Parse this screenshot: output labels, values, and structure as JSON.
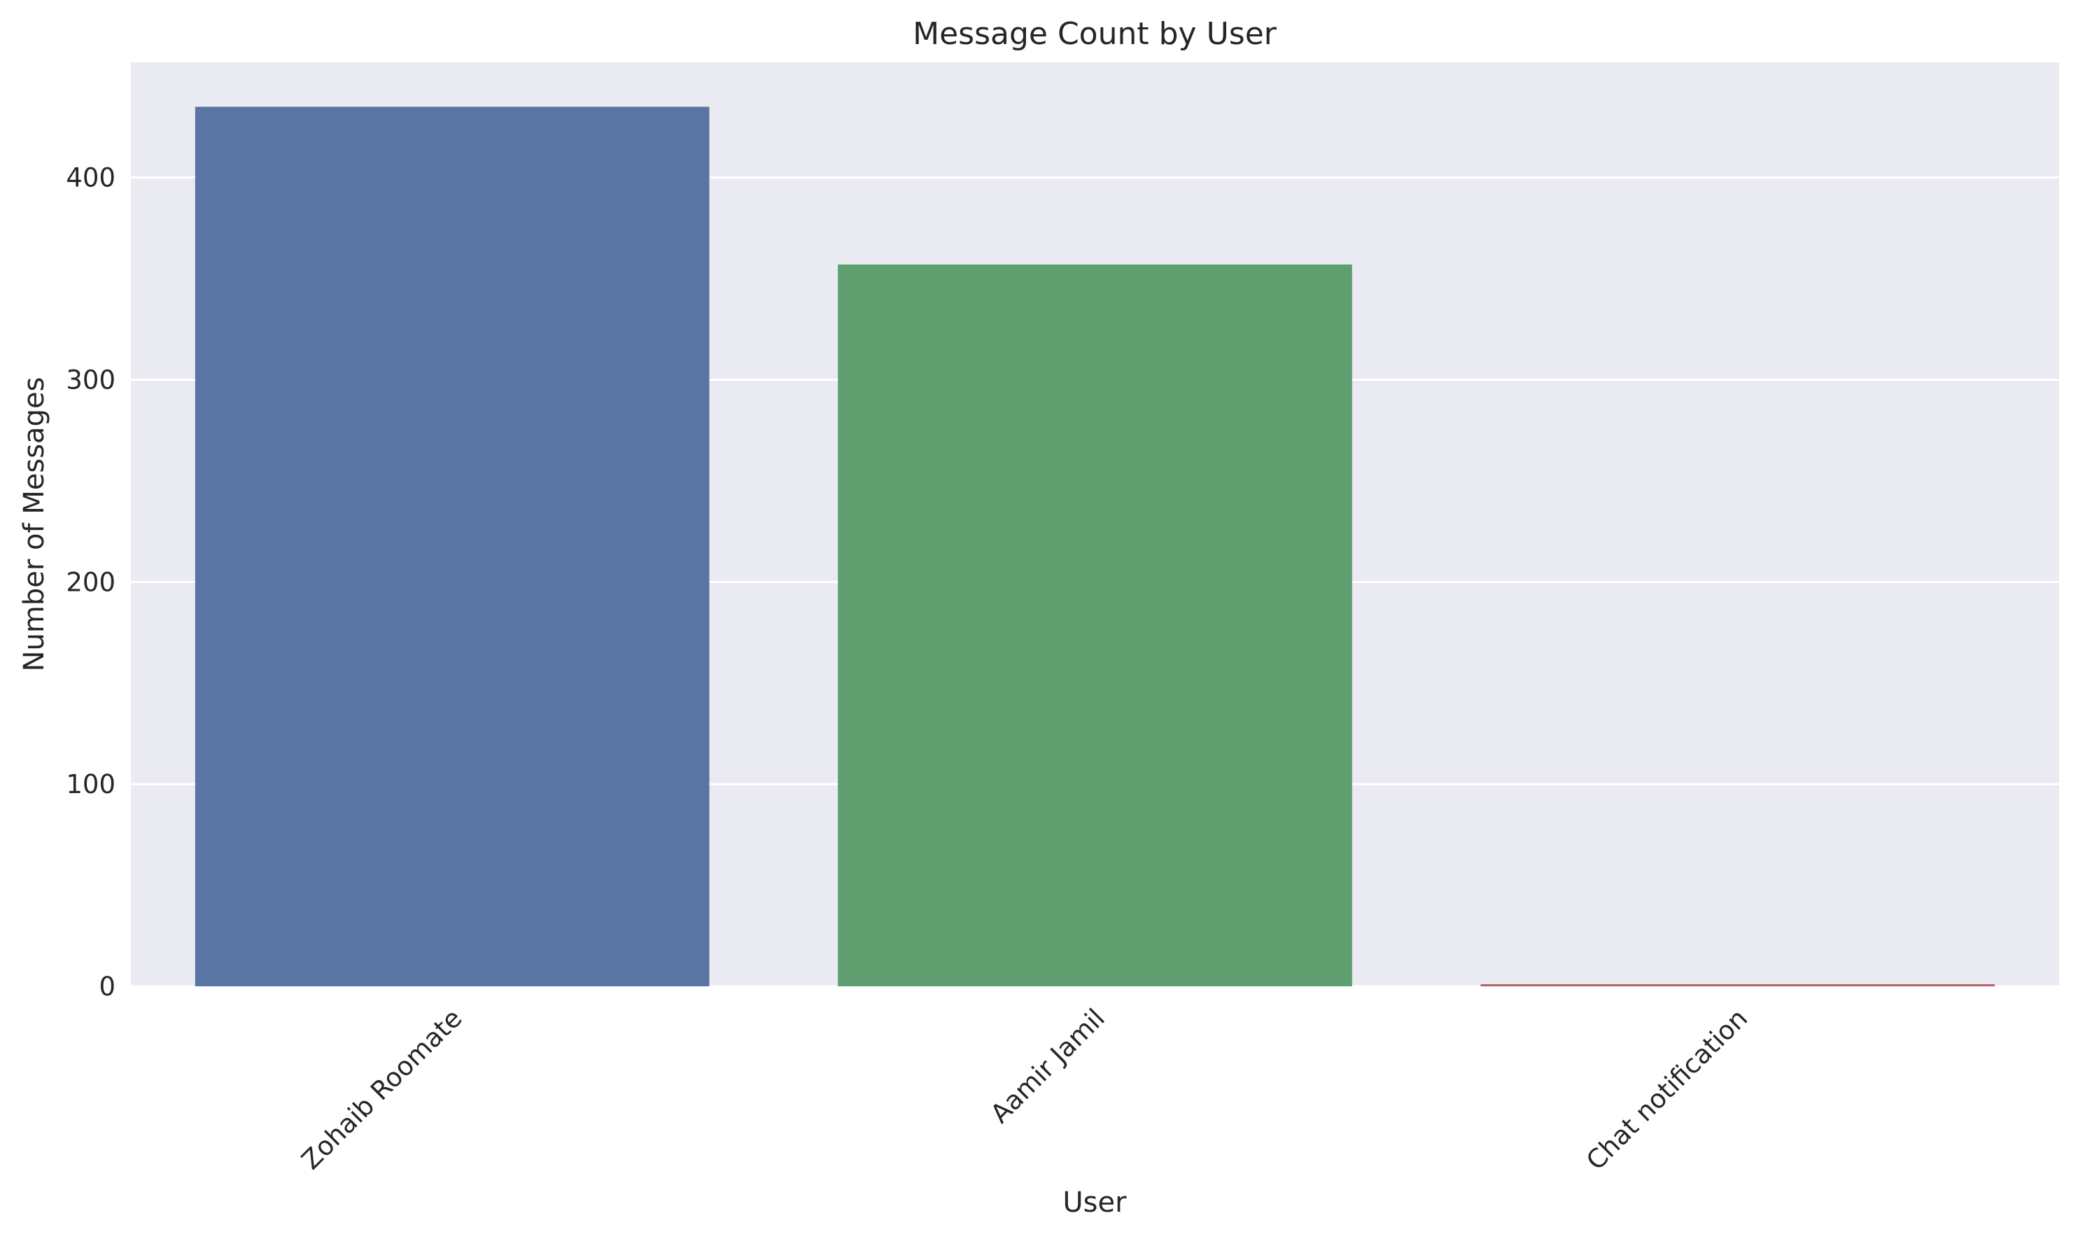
{
  "chart_data": {
    "type": "bar",
    "title": "Message Count by User",
    "xlabel": "User",
    "ylabel": "Number of Messages",
    "categories": [
      "Zohaib Roomate",
      "Aamir Jamil",
      "Chat notification"
    ],
    "values": [
      435,
      357,
      1
    ],
    "colors": [
      "#5975a4",
      "#5f9e6e",
      "#b55d60"
    ],
    "ylim": [
      0,
      457
    ],
    "yticks": [
      0,
      100,
      200,
      300,
      400
    ],
    "grid": true,
    "background": "#eaeaf2",
    "xtick_rotation": -45
  }
}
